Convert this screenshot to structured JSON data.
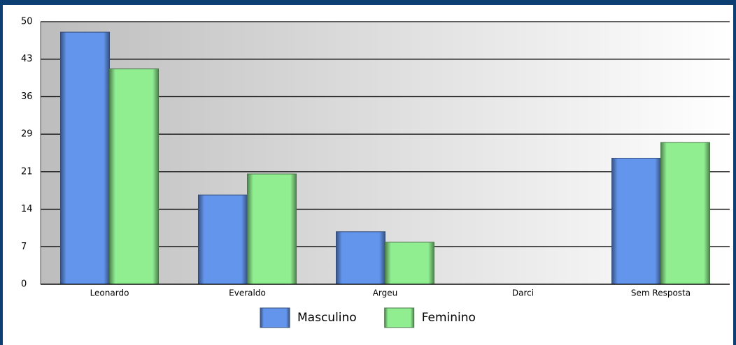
{
  "chart_data": {
    "type": "bar",
    "categories": [
      "Leonardo",
      "Everaldo",
      "Argeu",
      "Darci",
      "Sem Resposta"
    ],
    "series": [
      {
        "name": "Masculino",
        "color": "#6495ed",
        "values": [
          48,
          17,
          10,
          0,
          24
        ]
      },
      {
        "name": "Feminino",
        "color": "#90ee90",
        "values": [
          41,
          21,
          8,
          0,
          27
        ]
      }
    ],
    "ylim": [
      0,
      50
    ],
    "yticks": [
      0,
      {
        "value": 7.14,
        "label": "7"
      },
      {
        "value": 14.29,
        "label": "14"
      },
      {
        "value": 21.43,
        "label": "21"
      },
      {
        "value": 28.57,
        "label": "29"
      },
      {
        "value": 35.71,
        "label": "36"
      },
      {
        "value": 42.86,
        "label": "43"
      },
      50
    ],
    "grid": true,
    "legend": "bottom"
  }
}
